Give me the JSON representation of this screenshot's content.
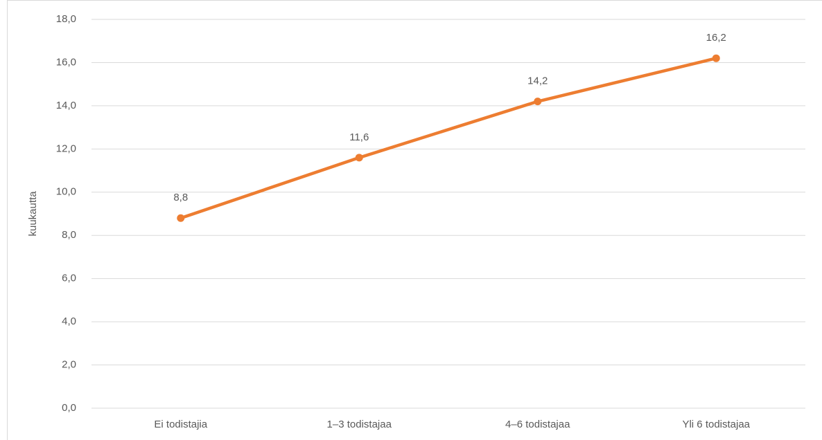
{
  "chart_data": {
    "type": "line",
    "y_label": "kuukautta",
    "categories": [
      "Ei todistajia",
      "1–3 todistajaa",
      "4–6 todistajaa",
      "Yli 6 todistajaa"
    ],
    "series": [
      {
        "name": null,
        "color": "#ed7d31",
        "values": [
          8.8,
          11.6,
          14.2,
          16.2
        ],
        "value_labels": [
          "8,8",
          "11,6",
          "14,2",
          "16,2"
        ]
      }
    ],
    "ylim": [
      0,
      18
    ],
    "yticks": [
      {
        "value": 0,
        "label": "0,0"
      },
      {
        "value": 2,
        "label": "2,0"
      },
      {
        "value": 4,
        "label": "4,0"
      },
      {
        "value": 6,
        "label": "6,0"
      },
      {
        "value": 8,
        "label": "8,0"
      },
      {
        "value": 10,
        "label": "10,0"
      },
      {
        "value": 12,
        "label": "12,0"
      },
      {
        "value": 14,
        "label": "14,0"
      },
      {
        "value": 16,
        "label": "16,0"
      },
      {
        "value": 18,
        "label": "18,0"
      }
    ],
    "grid": true
  }
}
